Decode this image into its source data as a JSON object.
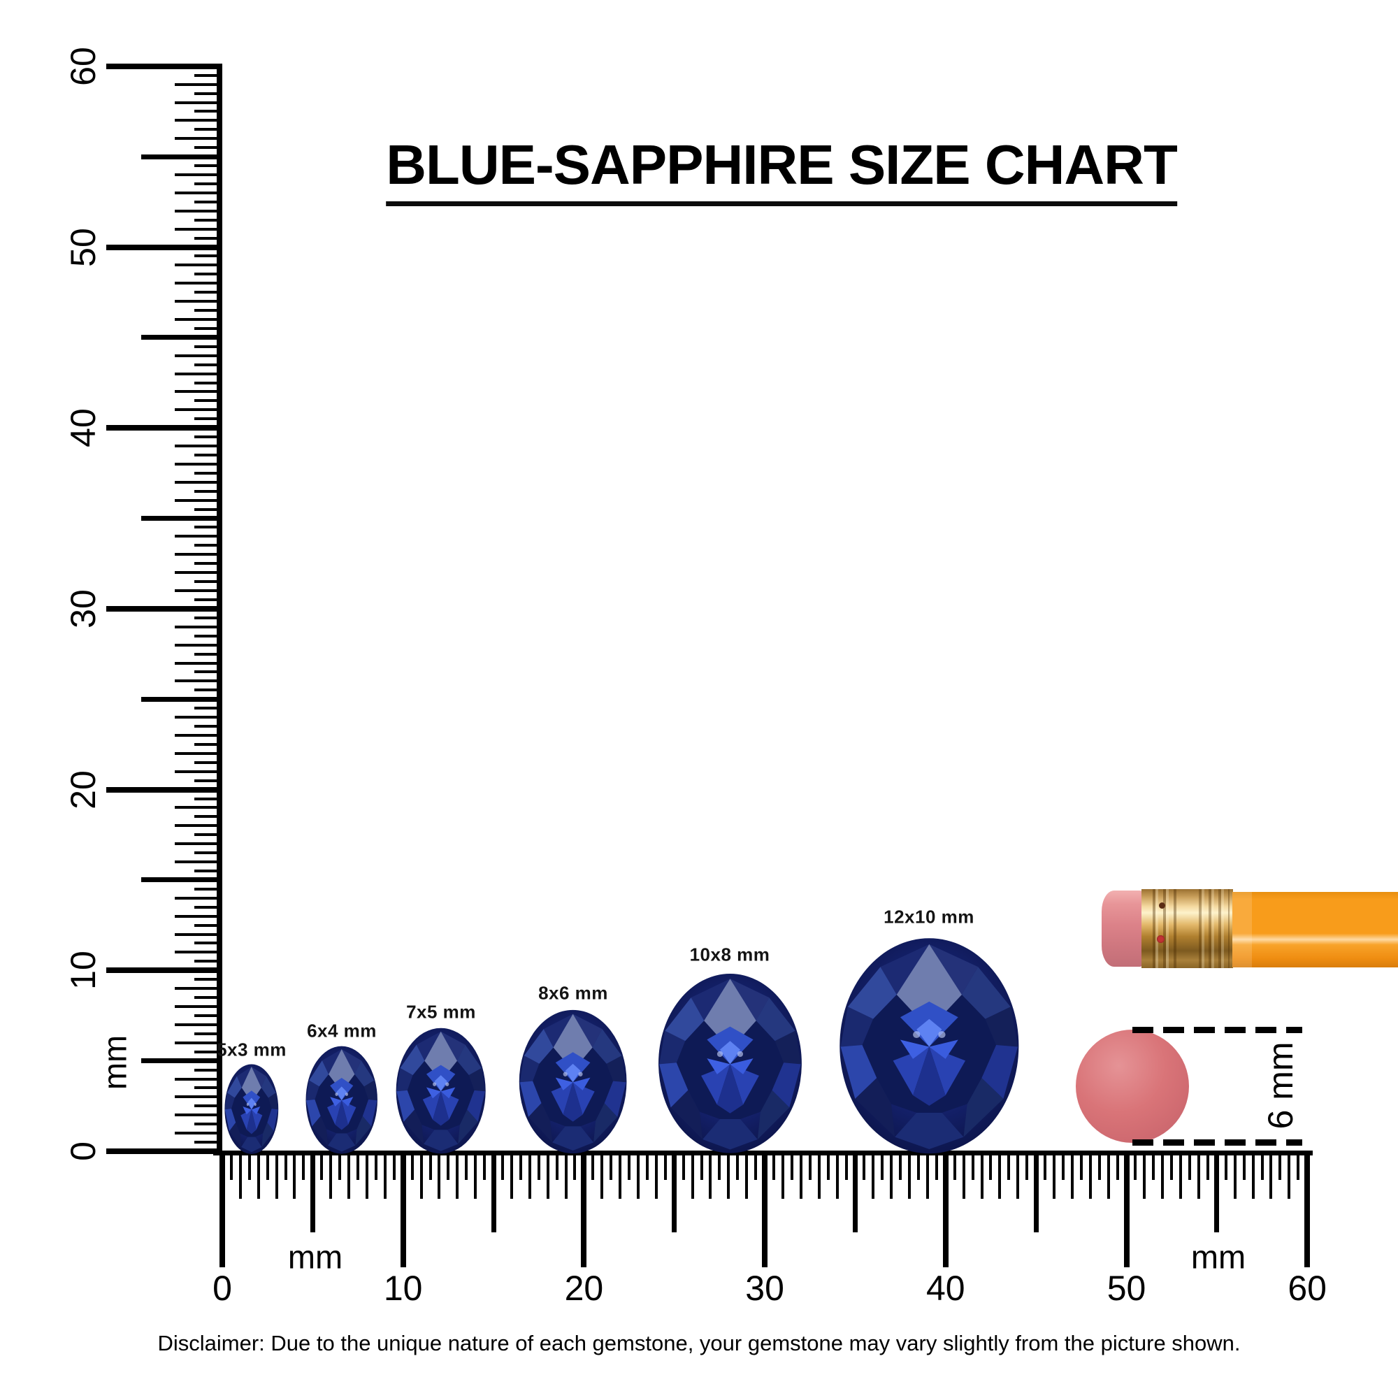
{
  "title": "BLUE-SAPPHIRE SIZE CHART",
  "vertical_ruler": {
    "unit": "mm",
    "tick_labels": [
      "0",
      "10",
      "20",
      "30",
      "40",
      "50",
      "60"
    ]
  },
  "horizontal_ruler": {
    "unit_left": "mm",
    "unit_right": "mm",
    "tick_labels": [
      "0",
      "10",
      "20",
      "30",
      "40",
      "50",
      "60"
    ]
  },
  "gems": [
    {
      "label": "5x3 mm",
      "length_mm": 5,
      "width_mm": 3
    },
    {
      "label": "6x4 mm",
      "length_mm": 6,
      "width_mm": 4
    },
    {
      "label": "7x5 mm",
      "length_mm": 7,
      "width_mm": 5
    },
    {
      "label": "8x6 mm",
      "length_mm": 8,
      "width_mm": 6
    },
    {
      "label": "10x8 mm",
      "length_mm": 10,
      "width_mm": 8
    },
    {
      "label": "12x10 mm",
      "length_mm": 12,
      "width_mm": 10
    }
  ],
  "eraser_measurement": {
    "label": "6 mm",
    "diameter_mm": 6
  },
  "disclaimer": "Disclaimer: Due to the unique nature of each gemstone, your gemstone may vary slightly from the picture shown.",
  "colors": {
    "sapphire_dark": "#0b123f",
    "sapphire_mid": "#16255e",
    "sapphire_bright": "#3050c6",
    "sapphire_slate": "#6f7dae",
    "ruler_black": "#000000",
    "pencil_orange": "#f89c1b",
    "ferrule_brass": "#caa05c",
    "eraser_pink": "#d98287",
    "eraser_disc_pink": "#d76f74"
  }
}
